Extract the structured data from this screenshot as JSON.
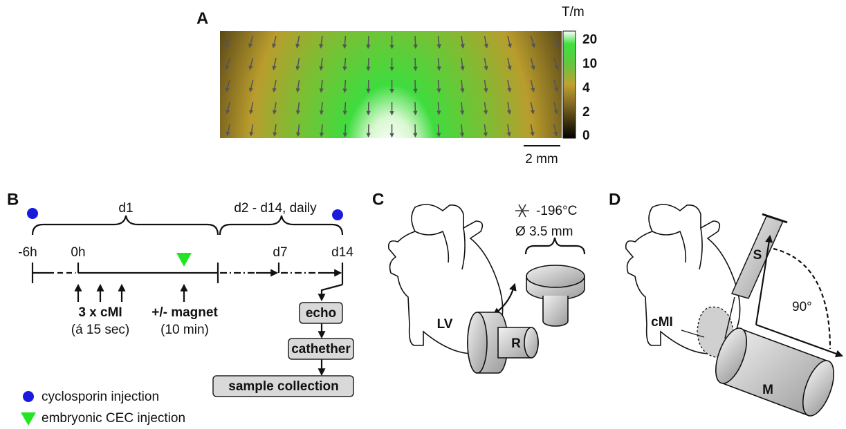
{
  "panel_a": {
    "label": "A",
    "colorbar": {
      "unit": "T/m",
      "ticks": [
        20,
        10,
        4,
        2,
        0
      ]
    },
    "scale_bar": "2 mm"
  },
  "panel_b": {
    "label": "B",
    "braces": [
      "d1",
      "d2 - d14, daily"
    ],
    "timepoints": [
      "-6h",
      "0h",
      "d7",
      "d14"
    ],
    "treatments": [
      {
        "title": "3 x cMI",
        "detail": "(á 15 sec)"
      },
      {
        "title": "+/- magnet",
        "detail": "(10 min)"
      }
    ],
    "steps": [
      "echo",
      "cathether",
      "sample collection"
    ],
    "legend": [
      "cyclosporin injection",
      "embryonic CEC injection"
    ]
  },
  "panel_c": {
    "label": "C",
    "temperature": "-196°C",
    "diameter": "Ø 3.5 mm",
    "labels": [
      "LV",
      "R"
    ]
  },
  "panel_d": {
    "label": "D",
    "labels": [
      "S",
      "cMI",
      "M"
    ],
    "angle": "90°"
  }
}
